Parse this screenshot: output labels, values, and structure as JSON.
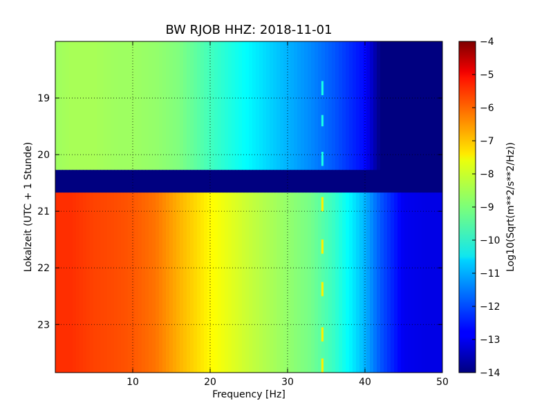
{
  "chart_data": {
    "type": "heatmap",
    "title": "BW RJOB HHZ: 2018-11-01",
    "xlabel": "Frequency [Hz]",
    "ylabel": "Lokalzeit (UTC + 1 Stunde)",
    "xlim": [
      0,
      50
    ],
    "ylim": [
      18.0,
      23.85
    ],
    "y_inverted": true,
    "xticks": [
      10,
      20,
      30,
      40,
      50
    ],
    "yticks": [
      19,
      20,
      21,
      22,
      23
    ],
    "grid": true,
    "colorbar": {
      "label": "Log10(Sqrt(m**2/s**2/Hz))",
      "range": [
        -14,
        -4
      ],
      "ticks": [
        -4,
        -5,
        -6,
        -7,
        -8,
        -9,
        -10,
        -11,
        -12,
        -13,
        -14
      ],
      "colormap": "jet"
    },
    "freq_profile_hz": [
      0,
      2,
      5,
      8,
      10,
      13,
      16,
      20,
      25,
      30,
      33,
      36,
      38,
      40,
      42,
      45,
      48,
      50
    ],
    "segments": [
      {
        "time_range": [
          18.0,
          20.27
        ],
        "values": [
          -8.7,
          -8.6,
          -8.6,
          -8.7,
          -8.7,
          -8.8,
          -9.0,
          -9.6,
          -10.3,
          -11.0,
          -11.4,
          -11.9,
          -12.3,
          -12.7,
          -14.0,
          -14.0,
          -14.0,
          -14.0
        ]
      },
      {
        "time_range": [
          20.27,
          20.67
        ],
        "values": [
          -14.0,
          -14.0,
          -14.0,
          -14.0,
          -14.0,
          -14.0,
          -14.0,
          -14.0,
          -14.0,
          -14.0,
          -14.0,
          -14.0,
          -14.0,
          -14.0,
          -14.0,
          -14.0,
          -14.0,
          -14.0
        ],
        "note_gap": true
      },
      {
        "time_range": [
          20.67,
          23.85
        ],
        "values": [
          -5.7,
          -5.7,
          -5.9,
          -6.0,
          -6.1,
          -6.4,
          -7.0,
          -7.7,
          -8.3,
          -8.8,
          -9.1,
          -9.7,
          -10.3,
          -11.0,
          -11.9,
          -12.9,
          -13.0,
          -13.0
        ]
      }
    ],
    "lines": [
      {
        "freq": 34.5,
        "time": [
          18.7,
          18.95
        ],
        "value": -10.0
      },
      {
        "freq": 34.5,
        "time": [
          19.3,
          19.5
        ],
        "value": -10.0
      },
      {
        "freq": 34.5,
        "time": [
          19.95,
          20.2
        ],
        "value": -10.0
      },
      {
        "freq": 34.5,
        "time": [
          20.75,
          21.0
        ],
        "value": -7.6
      },
      {
        "freq": 34.5,
        "time": [
          21.5,
          21.75
        ],
        "value": -7.6
      },
      {
        "freq": 34.5,
        "time": [
          22.25,
          22.5
        ],
        "value": -7.6
      },
      {
        "freq": 34.5,
        "time": [
          23.05,
          23.3
        ],
        "value": -7.6
      },
      {
        "freq": 34.5,
        "time": [
          23.6,
          23.85
        ],
        "value": -7.6
      }
    ]
  }
}
